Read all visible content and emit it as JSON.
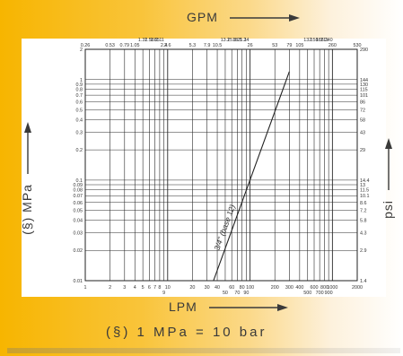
{
  "chart_data": {
    "type": "line",
    "top_axis_label": "GPM",
    "bottom_axis_label": "LPM",
    "left_axis_label": "(§)  MPa",
    "right_axis_label": "psi",
    "x_scale": "log",
    "y_scale": "log",
    "xlim": [
      1,
      2000
    ],
    "ylim": [
      0.01,
      2
    ],
    "grid": true,
    "bottom_ticks": [
      {
        "v": 1,
        "t": "1"
      },
      {
        "v": 2,
        "t": "2"
      },
      {
        "v": 3,
        "t": "3"
      },
      {
        "v": 4,
        "t": "4"
      },
      {
        "v": 5,
        "t": "5"
      },
      {
        "v": 6,
        "t": "6"
      },
      {
        "v": 7,
        "t": "7"
      },
      {
        "v": 8,
        "t": "8"
      },
      {
        "v": 10,
        "t": "10"
      },
      {
        "v": 20,
        "t": "20"
      },
      {
        "v": 30,
        "t": "30"
      },
      {
        "v": 40,
        "t": "40"
      },
      {
        "v": 60,
        "t": "60"
      },
      {
        "v": 80,
        "t": "80"
      },
      {
        "v": 100,
        "t": "100"
      },
      {
        "v": 200,
        "t": "200"
      },
      {
        "v": 300,
        "t": "300"
      },
      {
        "v": 400,
        "t": "400"
      },
      {
        "v": 600,
        "t": "600"
      },
      {
        "v": 800,
        "t": "800"
      },
      {
        "v": 1000,
        "t": "1000"
      },
      {
        "v": 2000,
        "t": "2000"
      }
    ],
    "bottom_ticks_row2": [
      {
        "v": 9,
        "t": "9"
      },
      {
        "v": 50,
        "t": "50"
      },
      {
        "v": 70,
        "t": "70"
      },
      {
        "v": 90,
        "t": "90"
      },
      {
        "v": 500,
        "t": "500"
      },
      {
        "v": 700,
        "t": "700"
      },
      {
        "v": 900,
        "t": "900"
      }
    ],
    "top_ticks": [
      {
        "v": 1,
        "t": "0.26"
      },
      {
        "v": 2,
        "t": "0.53"
      },
      {
        "v": 3,
        "t": "0.79"
      },
      {
        "v": 4,
        "t": "1.05"
      },
      {
        "v": 5,
        "t": "1.32"
      },
      {
        "v": 6,
        "t": "1.58"
      },
      {
        "v": 7,
        "t": "1.85"
      },
      {
        "v": 8,
        "t": "2.11"
      },
      {
        "v": 9,
        "t": "2.4"
      },
      {
        "v": 10,
        "t": "2.6"
      },
      {
        "v": 20,
        "t": "5.3"
      },
      {
        "v": 30,
        "t": "7.9"
      },
      {
        "v": 40,
        "t": "10.5"
      },
      {
        "v": 50,
        "t": "13.2"
      },
      {
        "v": 60,
        "t": "15.8"
      },
      {
        "v": 70,
        "t": "18.5"
      },
      {
        "v": 80,
        "t": "21.1"
      },
      {
        "v": 90,
        "t": "24"
      },
      {
        "v": 100,
        "t": "26"
      },
      {
        "v": 200,
        "t": "53"
      },
      {
        "v": 300,
        "t": "79"
      },
      {
        "v": 400,
        "t": "105"
      },
      {
        "v": 500,
        "t": "132"
      },
      {
        "v": 600,
        "t": "158"
      },
      {
        "v": 700,
        "t": "185"
      },
      {
        "v": 800,
        "t": "211"
      },
      {
        "v": 900,
        "t": "240"
      },
      {
        "v": 1000,
        "t": "260"
      },
      {
        "v": 2000,
        "t": "530"
      }
    ],
    "left_ticks": [
      {
        "v": 2,
        "t": "2"
      },
      {
        "v": 1,
        "t": "1"
      },
      {
        "v": 0.9,
        "t": "0.9"
      },
      {
        "v": 0.8,
        "t": "0.8"
      },
      {
        "v": 0.7,
        "t": "0.7"
      },
      {
        "v": 0.6,
        "t": "0.6"
      },
      {
        "v": 0.5,
        "t": "0.5"
      },
      {
        "v": 0.4,
        "t": "0.4"
      },
      {
        "v": 0.3,
        "t": "0.3"
      },
      {
        "v": 0.2,
        "t": "0.2"
      },
      {
        "v": 0.1,
        "t": "0.1"
      },
      {
        "v": 0.09,
        "t": "0.09"
      },
      {
        "v": 0.08,
        "t": "0.08"
      },
      {
        "v": 0.07,
        "t": "0.07"
      },
      {
        "v": 0.06,
        "t": "0.06"
      },
      {
        "v": 0.05,
        "t": "0.05"
      },
      {
        "v": 0.04,
        "t": "0.04"
      },
      {
        "v": 0.03,
        "t": "0.03"
      },
      {
        "v": 0.02,
        "t": "0.02"
      },
      {
        "v": 0.01,
        "t": "0.01"
      }
    ],
    "right_ticks": [
      {
        "v": 2,
        "t": "290"
      },
      {
        "v": 1,
        "t": "144"
      },
      {
        "v": 0.9,
        "t": "130"
      },
      {
        "v": 0.8,
        "t": "115"
      },
      {
        "v": 0.7,
        "t": "101"
      },
      {
        "v": 0.6,
        "t": "86"
      },
      {
        "v": 0.5,
        "t": "72"
      },
      {
        "v": 0.4,
        "t": "58"
      },
      {
        "v": 0.3,
        "t": "43"
      },
      {
        "v": 0.2,
        "t": "29"
      },
      {
        "v": 0.1,
        "t": "14.4"
      },
      {
        "v": 0.09,
        "t": "13"
      },
      {
        "v": 0.08,
        "t": "11.5"
      },
      {
        "v": 0.07,
        "t": "10.1"
      },
      {
        "v": 0.06,
        "t": "8.6"
      },
      {
        "v": 0.05,
        "t": "7.2"
      },
      {
        "v": 0.04,
        "t": "5.8"
      },
      {
        "v": 0.03,
        "t": "4.3"
      },
      {
        "v": 0.02,
        "t": "2.9"
      },
      {
        "v": 0.01,
        "t": "1.4"
      }
    ],
    "series": [
      {
        "name": "3/4\" (base 12)",
        "points": [
          [
            36,
            0.01
          ],
          [
            300,
            1.2
          ]
        ],
        "color": "#222222"
      }
    ],
    "note": "(§)   1 MPa = 10 bar"
  }
}
